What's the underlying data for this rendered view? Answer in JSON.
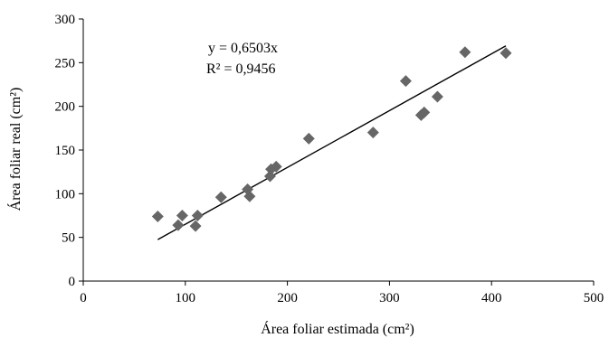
{
  "chart_data": {
    "type": "scatter",
    "title": "",
    "xlabel": "Área foliar estimada (cm²)",
    "ylabel": "Área foliar real (cm²)",
    "xlim": [
      0,
      500
    ],
    "ylim": [
      0,
      300
    ],
    "xticks": [
      "0",
      "100",
      "200",
      "300",
      "400",
      "500"
    ],
    "yticks": [
      "0",
      "50",
      "100",
      "150",
      "200",
      "250",
      "300"
    ],
    "grid": false,
    "legend": "none",
    "marker": "diamond",
    "marker_color": "#666666",
    "trendline_color": "#000000",
    "points": [
      {
        "x": 73,
        "y": 74
      },
      {
        "x": 93,
        "y": 64
      },
      {
        "x": 97,
        "y": 75
      },
      {
        "x": 110,
        "y": 63
      },
      {
        "x": 112,
        "y": 75
      },
      {
        "x": 135,
        "y": 96
      },
      {
        "x": 161,
        "y": 105
      },
      {
        "x": 163,
        "y": 97
      },
      {
        "x": 183,
        "y": 120
      },
      {
        "x": 184,
        "y": 128
      },
      {
        "x": 189,
        "y": 131
      },
      {
        "x": 221,
        "y": 163
      },
      {
        "x": 284,
        "y": 170
      },
      {
        "x": 316,
        "y": 229
      },
      {
        "x": 331,
        "y": 190
      },
      {
        "x": 334,
        "y": 193
      },
      {
        "x": 347,
        "y": 211
      },
      {
        "x": 374,
        "y": 262
      },
      {
        "x": 414,
        "y": 261
      }
    ],
    "trendline": {
      "slope": 0.6503,
      "intercept": 0,
      "x_range": [
        73,
        414
      ]
    },
    "annotations": {
      "equation": "y = 0,6503x",
      "r_squared": "R² = 0,9456"
    }
  }
}
